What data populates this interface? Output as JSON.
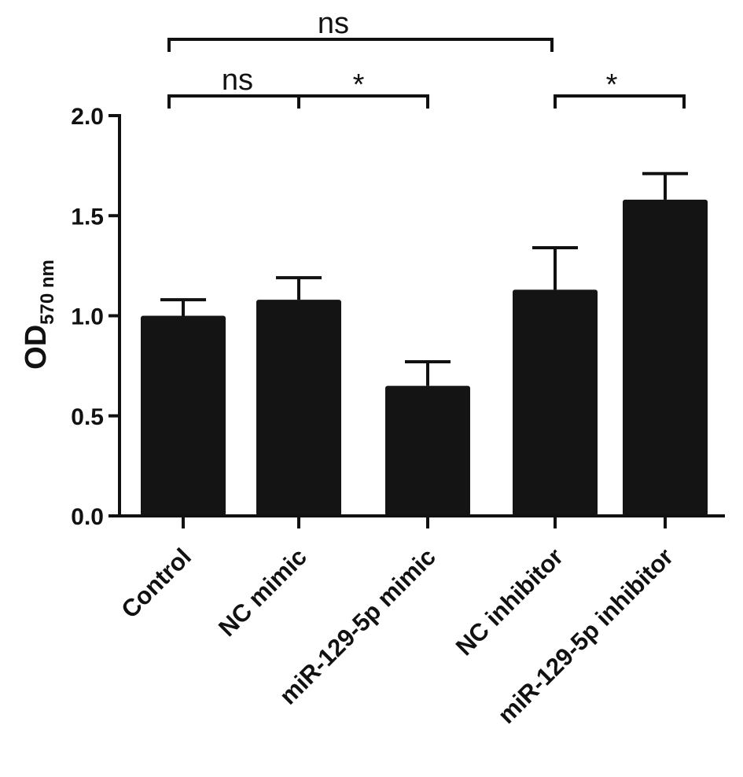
{
  "chart_data": {
    "type": "bar",
    "categories": [
      "Control",
      "NC mimic",
      "miR-129-5p mimic",
      "NC inhibitor",
      "miR-129-5p inhibitor"
    ],
    "values": [
      1.0,
      1.08,
      0.65,
      1.13,
      1.58
    ],
    "errors": [
      0.08,
      0.11,
      0.12,
      0.21,
      0.13
    ],
    "ylabel": {
      "main": "OD",
      "sub": "570 nm"
    },
    "ylim": [
      0,
      2.0
    ],
    "yticks": [
      "0.0",
      "0.5",
      "1.0",
      "1.5",
      "2.0"
    ],
    "ytick_values": [
      0,
      0.5,
      1.0,
      1.5,
      2.0
    ],
    "bar_color": "#141414",
    "significance": [
      {
        "from": 0,
        "to": 3,
        "label": "ns",
        "level": 2
      },
      {
        "from": 0,
        "to": 1,
        "label": "ns",
        "level": 1
      },
      {
        "from": 1,
        "to": 2,
        "label": "*",
        "level": 1
      },
      {
        "from": 3,
        "to": 4,
        "label": "*",
        "level": 1
      }
    ]
  }
}
